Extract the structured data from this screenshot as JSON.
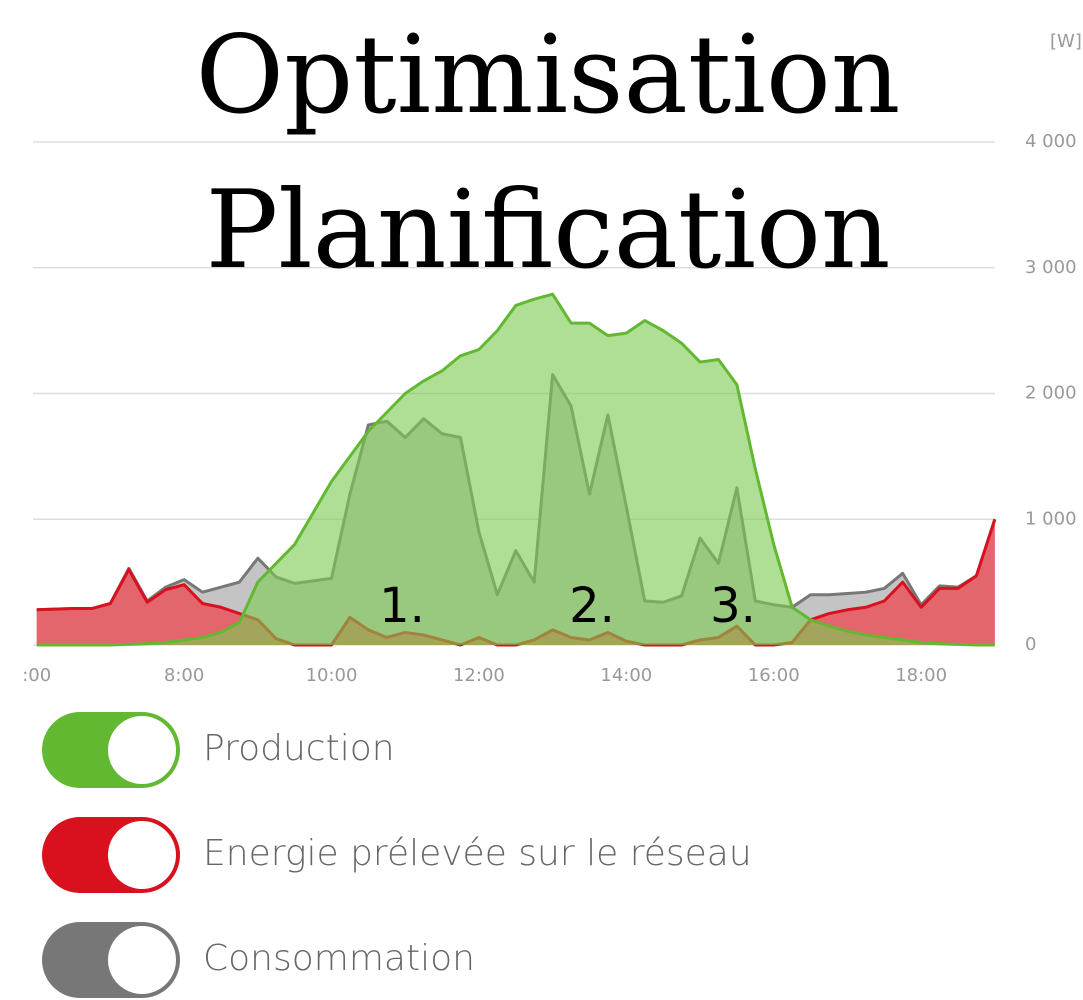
{
  "chart_data": {
    "type": "area",
    "title_lines": [
      "Optimisation",
      "Planification"
    ],
    "y_unit": "[W]",
    "annotations": [
      "1.",
      "2.",
      "3."
    ],
    "x": [
      6,
      6.25,
      6.5,
      6.75,
      7,
      7.25,
      7.5,
      7.75,
      8,
      8.25,
      8.5,
      8.75,
      9,
      9.25,
      9.5,
      9.75,
      10,
      10.25,
      10.5,
      10.75,
      11,
      11.25,
      11.5,
      11.75,
      12,
      12.25,
      12.5,
      12.75,
      13,
      13.25,
      13.5,
      13.75,
      14,
      14.25,
      14.5,
      14.75,
      15,
      15.25,
      15.5,
      15.75,
      16,
      16.25,
      16.5,
      16.75,
      17,
      17.25,
      17.5,
      17.75,
      18,
      18.25,
      18.5,
      18.75,
      19
    ],
    "series": [
      {
        "name": "Production",
        "color": "#63b832",
        "values": [
          0,
          0,
          0,
          0,
          0,
          5,
          10,
          20,
          40,
          60,
          100,
          180,
          500,
          650,
          800,
          1050,
          1300,
          1500,
          1700,
          1850,
          2000,
          2100,
          2180,
          2300,
          2350,
          2500,
          2700,
          2750,
          2790,
          2560,
          2560,
          2460,
          2480,
          2580,
          2500,
          2400,
          2250,
          2270,
          2070,
          1400,
          800,
          300,
          200,
          150,
          110,
          80,
          60,
          40,
          20,
          10,
          5,
          0,
          0
        ]
      },
      {
        "name": "Energie prélevée sur le réseau",
        "color": "#d9101e",
        "values": [
          280,
          285,
          290,
          290,
          330,
          600,
          340,
          440,
          480,
          330,
          300,
          250,
          200,
          50,
          0,
          0,
          0,
          220,
          120,
          60,
          100,
          80,
          40,
          0,
          60,
          0,
          0,
          40,
          120,
          60,
          40,
          100,
          30,
          0,
          0,
          0,
          40,
          60,
          150,
          0,
          0,
          20,
          200,
          250,
          280,
          300,
          350,
          500,
          300,
          450,
          450,
          550,
          1000
        ]
      },
      {
        "name": "Consommation",
        "color": "#777777",
        "values": [
          280,
          285,
          290,
          290,
          330,
          610,
          350,
          460,
          520,
          420,
          460,
          500,
          690,
          540,
          490,
          510,
          530,
          1200,
          1750,
          1780,
          1650,
          1800,
          1680,
          1650,
          900,
          400,
          750,
          500,
          2150,
          1900,
          1200,
          1830,
          1100,
          350,
          340,
          390,
          850,
          650,
          1250,
          350,
          320,
          300,
          400,
          400,
          410,
          420,
          450,
          570,
          320,
          470,
          460,
          550,
          1000
        ]
      }
    ],
    "xlim": [
      5.95,
      19.07
    ],
    "xticks": [
      {
        "value": 6,
        "label": ":00"
      },
      {
        "value": 8,
        "label": "8:00"
      },
      {
        "value": 10,
        "label": "10:00"
      },
      {
        "value": 12,
        "label": "12:00"
      },
      {
        "value": 14,
        "label": "14:00"
      },
      {
        "value": 16,
        "label": "16:00"
      },
      {
        "value": 18,
        "label": "18:00"
      }
    ],
    "ylim": [
      0,
      4000
    ],
    "yticks": [
      0,
      {
        "value": 1000,
        "label": "1 000"
      },
      {
        "value": 2000,
        "label": "2 000"
      },
      {
        "value": 3000,
        "label": "3 000"
      },
      {
        "value": 4000,
        "label": "4 000"
      }
    ],
    "grid": true
  }
}
